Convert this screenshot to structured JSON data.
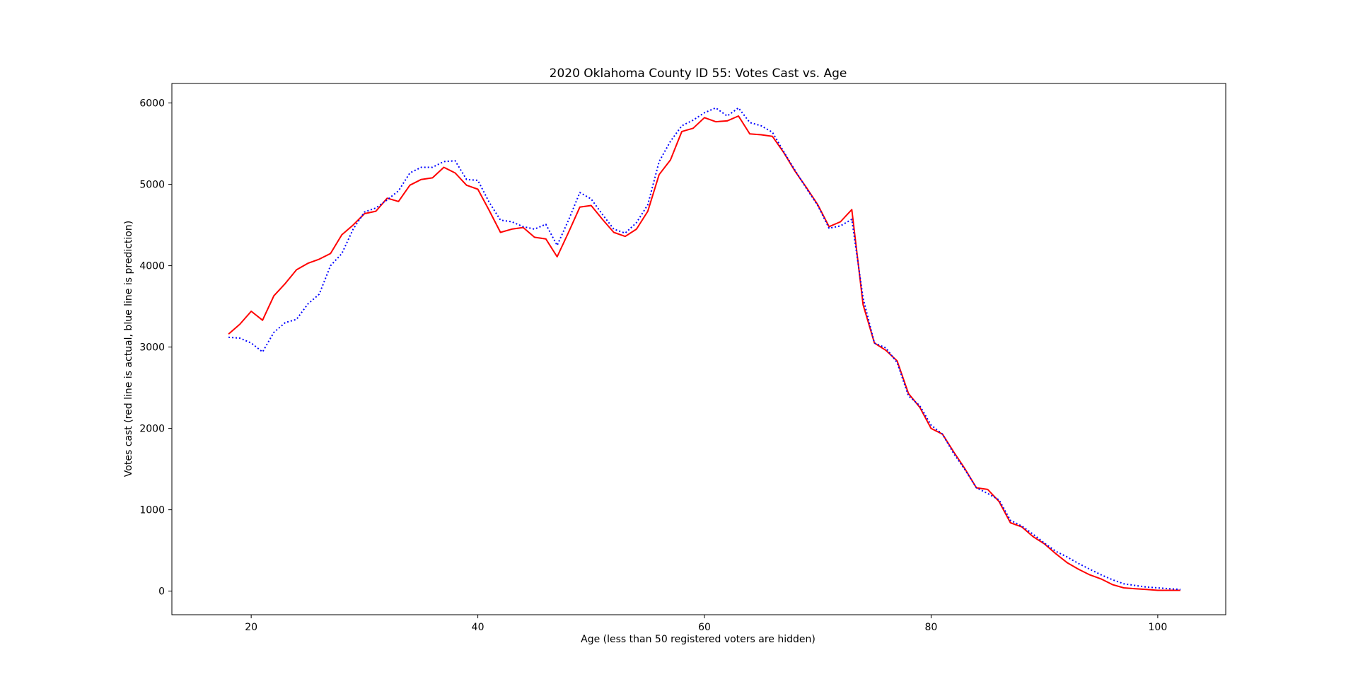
{
  "chart_data": {
    "type": "line",
    "title": "2020 Oklahoma County ID 55: Votes Cast vs. Age",
    "xlabel": "Age (less than 50 registered voters are hidden)",
    "ylabel": "Votes cast (red line is actual, blue line is prediction)",
    "xlim": [
      13,
      106
    ],
    "ylim": [
      -290,
      6240
    ],
    "xticks": [
      20,
      40,
      60,
      80,
      100
    ],
    "yticks": [
      0,
      1000,
      2000,
      3000,
      4000,
      5000,
      6000
    ],
    "grid": false,
    "x": [
      18,
      19,
      20,
      21,
      22,
      23,
      24,
      25,
      26,
      27,
      28,
      29,
      30,
      31,
      32,
      33,
      34,
      35,
      36,
      37,
      38,
      39,
      40,
      41,
      42,
      43,
      44,
      45,
      46,
      47,
      48,
      49,
      50,
      51,
      52,
      53,
      54,
      55,
      56,
      57,
      58,
      59,
      60,
      61,
      62,
      63,
      64,
      65,
      66,
      67,
      68,
      69,
      70,
      71,
      72,
      73,
      74,
      75,
      76,
      77,
      78,
      79,
      80,
      81,
      82,
      83,
      84,
      85,
      86,
      87,
      88,
      89,
      90,
      91,
      92,
      93,
      94,
      95,
      96,
      97,
      98,
      99,
      100,
      101,
      102
    ],
    "series": [
      {
        "color": "#ff0000",
        "style": "solid",
        "values": [
          3160,
          3280,
          3440,
          3330,
          3630,
          3780,
          3950,
          4030,
          4080,
          4150,
          4380,
          4500,
          4640,
          4670,
          4830,
          4790,
          4990,
          5060,
          5080,
          5210,
          5140,
          4990,
          4940,
          4680,
          4410,
          4450,
          4470,
          4350,
          4330,
          4110,
          4410,
          4720,
          4740,
          4570,
          4410,
          4360,
          4450,
          4670,
          5120,
          5300,
          5650,
          5690,
          5820,
          5770,
          5780,
          5840,
          5620,
          5610,
          5590,
          5390,
          5160,
          4960,
          4750,
          4480,
          4540,
          4690,
          3520,
          3050,
          2960,
          2830,
          2430,
          2260,
          2000,
          1930,
          1710,
          1500,
          1270,
          1250,
          1100,
          840,
          790,
          670,
          580,
          460,
          350,
          270,
          200,
          150,
          80,
          40,
          30,
          20,
          10,
          10,
          10
        ]
      },
      {
        "color": "#0000ff",
        "style": "dotted",
        "values": [
          3120,
          3110,
          3050,
          2940,
          3180,
          3300,
          3340,
          3530,
          3650,
          4000,
          4150,
          4450,
          4660,
          4710,
          4810,
          4920,
          5140,
          5210,
          5210,
          5280,
          5290,
          5060,
          5050,
          4780,
          4560,
          4540,
          4480,
          4450,
          4510,
          4250,
          4560,
          4900,
          4820,
          4630,
          4450,
          4400,
          4530,
          4750,
          5280,
          5530,
          5720,
          5790,
          5880,
          5940,
          5840,
          5940,
          5760,
          5720,
          5640,
          5400,
          5170,
          4950,
          4740,
          4460,
          4490,
          4570,
          3600,
          3050,
          2990,
          2810,
          2400,
          2280,
          2040,
          1930,
          1690,
          1490,
          1270,
          1200,
          1120,
          870,
          800,
          700,
          590,
          490,
          420,
          340,
          270,
          200,
          140,
          90,
          70,
          50,
          40,
          30,
          20
        ]
      }
    ]
  }
}
